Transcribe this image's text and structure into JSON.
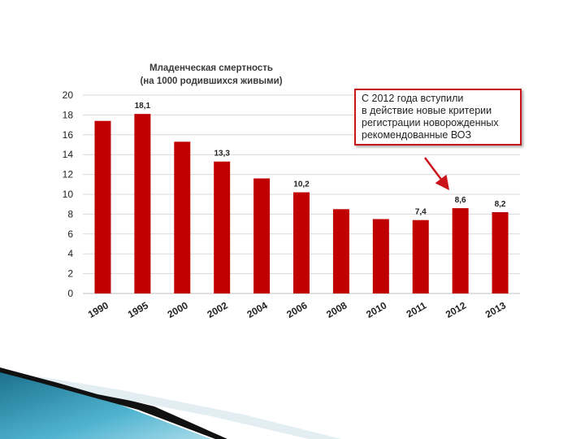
{
  "colors": {
    "bar": "#c00000",
    "callout_border": "#c8141a",
    "grid": "#d9d9d9"
  },
  "chart_data": {
    "type": "bar",
    "title": "Младенческая смертность",
    "subtitle": "(на 1000 родившихся живыми)",
    "categories": [
      "1990",
      "1995",
      "2000",
      "2002",
      "2004",
      "2006",
      "2008",
      "2010",
      "2011",
      "2012",
      "2013"
    ],
    "values": [
      17.4,
      18.1,
      15.3,
      13.3,
      11.6,
      10.2,
      8.5,
      7.5,
      7.4,
      8.6,
      8.2
    ],
    "data_labels": [
      "",
      "18,1",
      "",
      "13,3",
      "",
      "10,2",
      "",
      "",
      "7,4",
      "8,6",
      "8,2"
    ],
    "yticks": [
      "0",
      "2",
      "4",
      "6",
      "8",
      "10",
      "12",
      "14",
      "16",
      "18",
      "20"
    ],
    "ylim": [
      0,
      20
    ],
    "grid": true,
    "xlabel": "",
    "ylabel": "",
    "annotation": {
      "lines": [
        "С 2012 года вступили",
        "в действие новые критерии",
        "регистрации новорожденных",
        "рекомендованные ВОЗ"
      ],
      "points_to": "2012"
    }
  }
}
